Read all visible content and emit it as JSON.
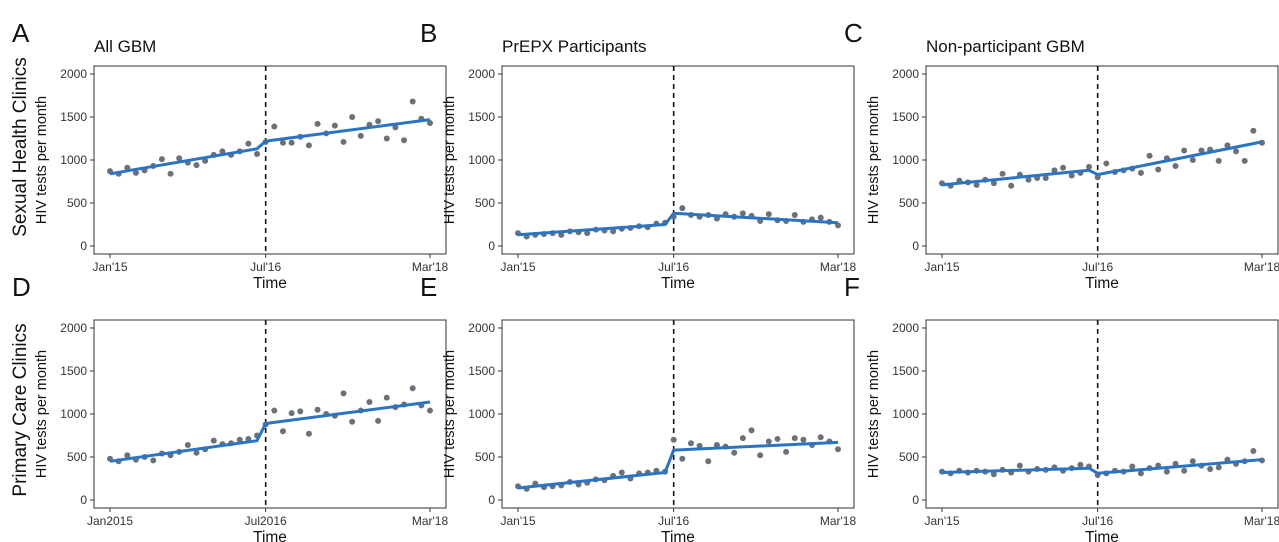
{
  "rows": [
    {
      "label": "Sexual Health Clinics"
    },
    {
      "label": "Primary Care Clinics"
    }
  ],
  "chart_data": [
    {
      "type": "scatter",
      "panel": "A",
      "title": "All GBM",
      "row": 0,
      "col": 0,
      "xlabel": "Time",
      "ylabel": "HIV tests per month",
      "xticks": [
        "Jan'15",
        "Jul'16",
        "Mar'18"
      ],
      "ylim": [
        0,
        2000
      ],
      "yticks": [
        0,
        500,
        1000,
        1500,
        2000
      ],
      "intervention_month": 18,
      "points": [
        870,
        840,
        910,
        850,
        880,
        930,
        1010,
        840,
        1020,
        970,
        940,
        990,
        1060,
        1100,
        1060,
        1100,
        1190,
        1070,
        1210,
        1390,
        1200,
        1200,
        1270,
        1170,
        1420,
        1310,
        1400,
        1210,
        1500,
        1280,
        1410,
        1450,
        1250,
        1380,
        1230,
        1680,
        1480,
        1430
      ],
      "trend": {
        "pre": [
          [
            0,
            840
          ],
          [
            17,
            1130
          ]
        ],
        "post": [
          [
            18,
            1220
          ],
          [
            37,
            1470
          ]
        ]
      }
    },
    {
      "type": "scatter",
      "panel": "B",
      "title": "PrEPX Participants",
      "row": 0,
      "col": 1,
      "xlabel": "Time",
      "ylabel": "HIV tests per month",
      "xticks": [
        "Jan'15",
        "Jul'16",
        "Mar'18"
      ],
      "ylim": [
        0,
        2000
      ],
      "yticks": [
        0,
        500,
        1000,
        1500,
        2000
      ],
      "intervention_month": 18,
      "points": [
        150,
        110,
        130,
        140,
        150,
        130,
        170,
        160,
        150,
        190,
        180,
        170,
        200,
        210,
        230,
        220,
        260,
        270,
        340,
        440,
        360,
        340,
        360,
        320,
        370,
        340,
        380,
        350,
        290,
        370,
        300,
        290,
        360,
        280,
        310,
        330,
        280,
        240
      ],
      "trend": {
        "pre": [
          [
            0,
            130
          ],
          [
            17,
            250
          ]
        ],
        "post": [
          [
            18,
            380
          ],
          [
            37,
            270
          ]
        ]
      }
    },
    {
      "type": "scatter",
      "panel": "C",
      "title": "Non-participant GBM",
      "row": 0,
      "col": 2,
      "xlabel": "Time",
      "ylabel": "HIV tests per month",
      "xticks": [
        "Jan'15",
        "Jul'16",
        "Mar'18"
      ],
      "ylim": [
        0,
        2000
      ],
      "yticks": [
        0,
        500,
        1000,
        1500,
        2000
      ],
      "intervention_month": 18,
      "points": [
        730,
        700,
        760,
        740,
        710,
        770,
        730,
        840,
        700,
        830,
        770,
        790,
        790,
        880,
        910,
        820,
        850,
        920,
        800,
        960,
        860,
        880,
        900,
        850,
        1050,
        890,
        1020,
        930,
        1110,
        1000,
        1110,
        1120,
        990,
        1170,
        1100,
        990,
        1340,
        1200
      ],
      "trend": {
        "pre": [
          [
            0,
            710
          ],
          [
            17,
            880
          ]
        ],
        "post": [
          [
            18,
            830
          ],
          [
            37,
            1210
          ]
        ]
      }
    },
    {
      "type": "scatter",
      "panel": "D",
      "title": "",
      "row": 1,
      "col": 0,
      "xlabel": "Time",
      "ylabel": "HIV tests per month",
      "xticks": [
        "Jan2015",
        "Jul2016",
        "Mar'18"
      ],
      "ylim": [
        0,
        2000
      ],
      "yticks": [
        0,
        500,
        1000,
        1500,
        2000
      ],
      "intervention_month": 18,
      "points": [
        480,
        450,
        520,
        470,
        500,
        460,
        540,
        520,
        560,
        640,
        550,
        590,
        690,
        650,
        660,
        700,
        710,
        750,
        880,
        1040,
        800,
        1010,
        1030,
        770,
        1050,
        1000,
        980,
        1240,
        910,
        1040,
        1140,
        920,
        1190,
        1080,
        1110,
        1300,
        1100,
        1040
      ],
      "trend": {
        "pre": [
          [
            0,
            450
          ],
          [
            17,
            690
          ]
        ],
        "post": [
          [
            18,
            890
          ],
          [
            37,
            1140
          ]
        ]
      }
    },
    {
      "type": "scatter",
      "panel": "E",
      "title": "",
      "row": 1,
      "col": 1,
      "xlabel": "Time",
      "ylabel": "HIV tests per month",
      "xticks": [
        "Jan'15",
        "Jul'16",
        "Mar'18"
      ],
      "ylim": [
        0,
        2000
      ],
      "yticks": [
        0,
        500,
        1000,
        1500,
        2000
      ],
      "intervention_month": 18,
      "points": [
        160,
        130,
        190,
        150,
        160,
        170,
        210,
        180,
        200,
        240,
        230,
        280,
        320,
        250,
        310,
        320,
        340,
        330,
        700,
        480,
        660,
        630,
        450,
        640,
        620,
        550,
        720,
        810,
        520,
        680,
        710,
        560,
        720,
        700,
        640,
        730,
        680,
        590
      ],
      "trend": {
        "pre": [
          [
            0,
            140
          ],
          [
            17,
            320
          ]
        ],
        "post": [
          [
            18,
            580
          ],
          [
            37,
            670
          ]
        ]
      }
    },
    {
      "type": "scatter",
      "panel": "F",
      "title": "",
      "row": 1,
      "col": 2,
      "xlabel": "Time",
      "ylabel": "HIV tests per month",
      "xticks": [
        "Jan'15",
        "Jul'16",
        "Mar'18"
      ],
      "ylim": [
        0,
        2000
      ],
      "yticks": [
        0,
        500,
        1000,
        1500,
        2000
      ],
      "intervention_month": 18,
      "points": [
        330,
        310,
        340,
        320,
        340,
        330,
        300,
        350,
        320,
        400,
        330,
        360,
        350,
        380,
        340,
        370,
        410,
        390,
        290,
        310,
        340,
        330,
        390,
        310,
        370,
        400,
        330,
        420,
        340,
        450,
        400,
        360,
        380,
        470,
        420,
        450,
        570,
        460
      ],
      "trend": {
        "pre": [
          [
            0,
            320
          ],
          [
            17,
            370
          ]
        ],
        "post": [
          [
            18,
            310
          ],
          [
            37,
            470
          ]
        ]
      }
    }
  ]
}
